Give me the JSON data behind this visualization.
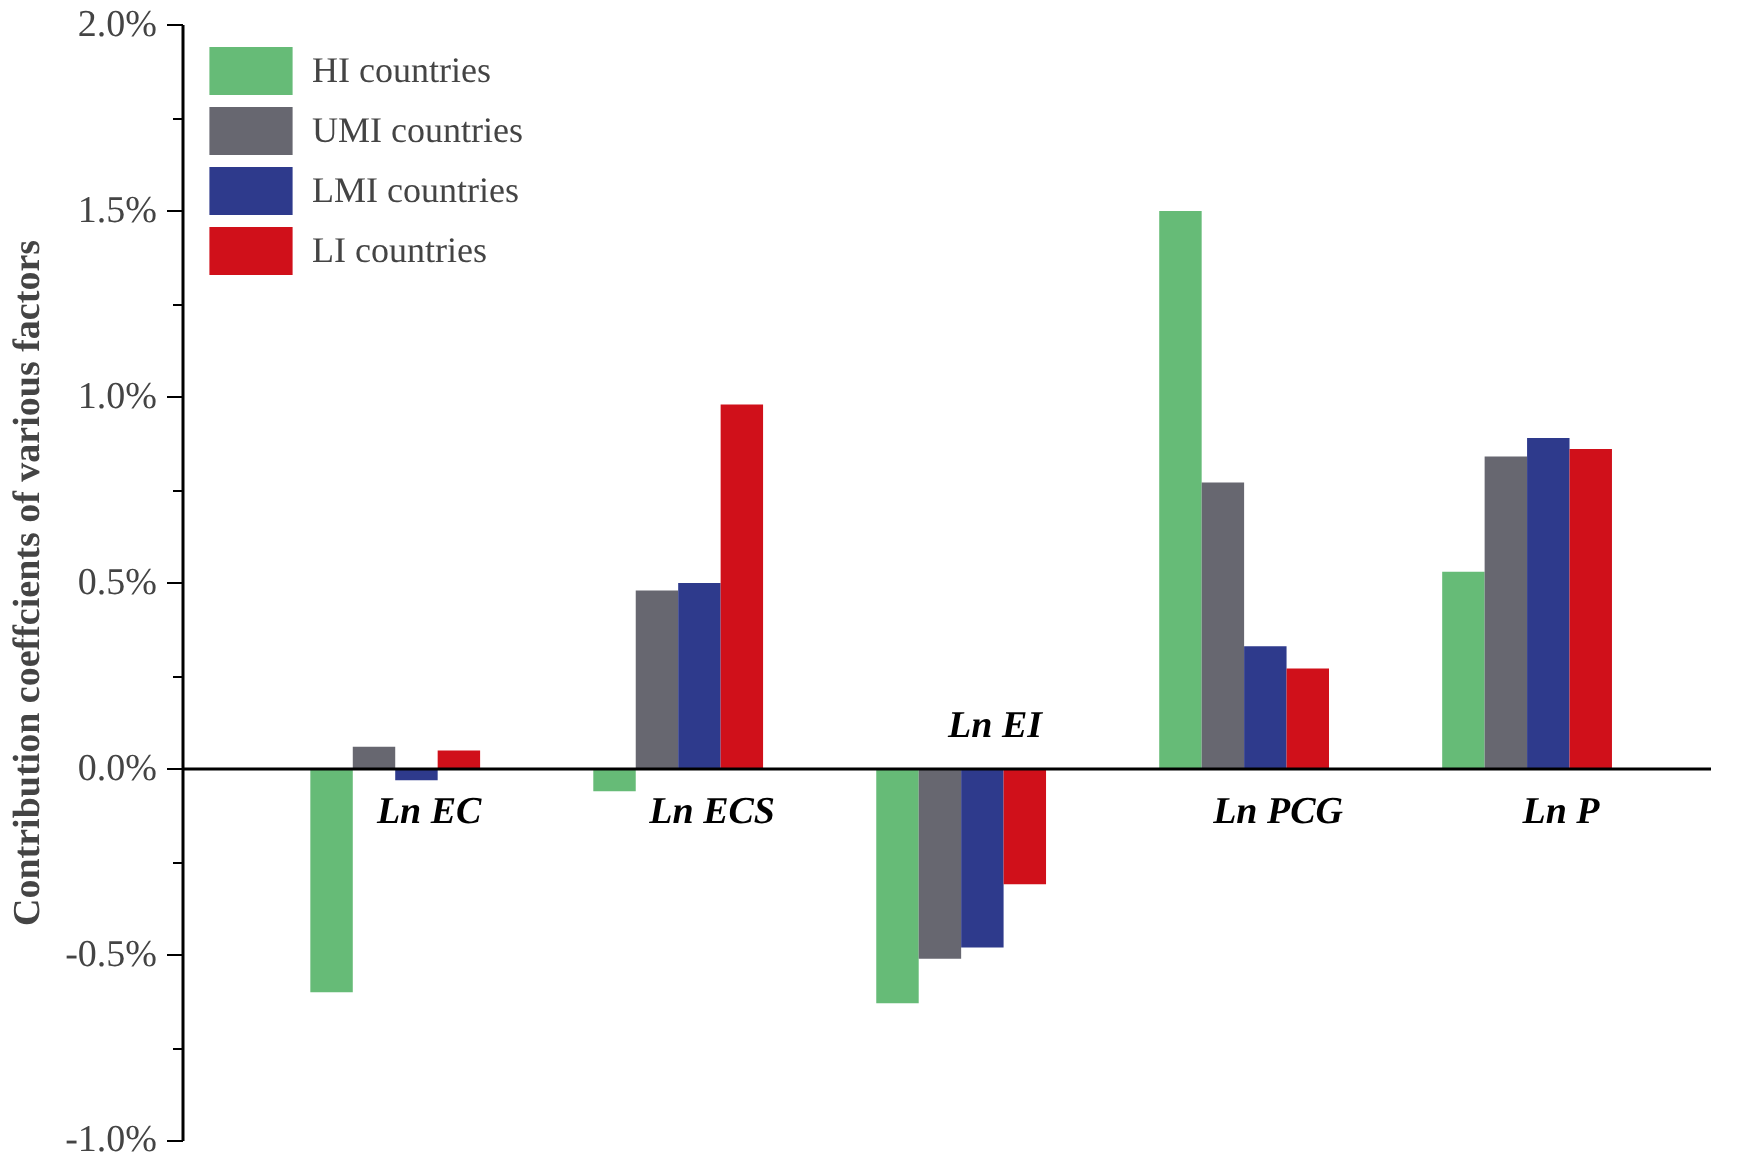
{
  "chart_data": {
    "type": "bar",
    "ylabel": "Contribution coeffcients of various factors",
    "categories": [
      "Ln EC",
      "Ln ECS",
      "Ln EI",
      "Ln PCG",
      "Ln P"
    ],
    "series": [
      {
        "name": "HI countries",
        "color": "#66bb77",
        "values": [
          -0.6,
          -0.06,
          -0.63,
          1.5,
          0.53
        ]
      },
      {
        "name": "UMI countries",
        "color": "#676770",
        "values": [
          0.06,
          0.48,
          -0.51,
          0.77,
          0.84
        ]
      },
      {
        "name": "LMI countries",
        "color": "#2e3a8c",
        "values": [
          -0.03,
          0.5,
          -0.48,
          0.33,
          0.89
        ]
      },
      {
        "name": "LI countries",
        "color": "#d0101a",
        "values": [
          0.05,
          0.98,
          -0.31,
          0.27,
          0.86
        ]
      }
    ],
    "ylim": [
      -1.0,
      2.0
    ],
    "yticks": [
      {
        "value": -1.0,
        "label": "-1.0%"
      },
      {
        "value": -0.5,
        "label": "-0.5%"
      },
      {
        "value": 0,
        "label": "0.0%"
      },
      {
        "value": 0.5,
        "label": "0.5%"
      },
      {
        "value": 1.0,
        "label": "1.0%"
      },
      {
        "value": 1.5,
        "label": "1.5%"
      },
      {
        "value": 2.0,
        "label": "2.0%"
      }
    ],
    "grid": false,
    "legend": "top left"
  }
}
